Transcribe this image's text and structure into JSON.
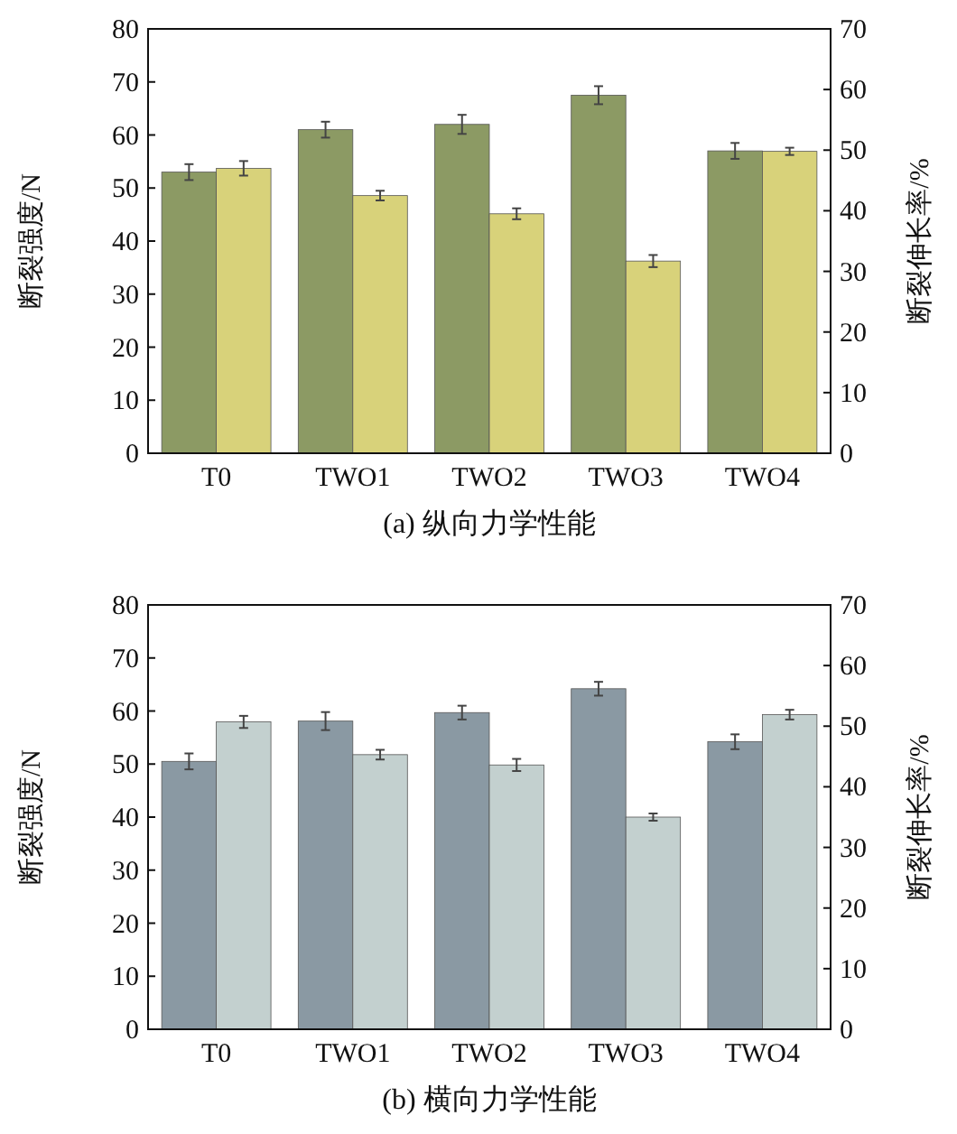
{
  "chart_data": [
    {
      "type": "bar",
      "title": "(a) 纵向力学性能",
      "ylabel": "断裂强度/N",
      "y2label": "断裂伸长率/%",
      "categories": [
        "T0",
        "TWO1",
        "TWO2",
        "TWO3",
        "TWO4"
      ],
      "series": [
        {
          "color": "#8c9a64",
          "values": [
            53,
            61,
            62,
            67.5,
            57
          ],
          "errors": [
            1.5,
            1.5,
            1.8,
            1.7,
            1.5
          ]
        },
        {
          "color": "#d8d27a",
          "axis": "y2",
          "values": [
            47,
            42.5,
            39.5,
            31.7,
            49.8
          ],
          "errors": [
            1.2,
            0.8,
            0.9,
            1,
            0.6
          ]
        }
      ],
      "ylim": [
        0,
        80
      ],
      "yticks": [
        0,
        10,
        20,
        30,
        40,
        50,
        60,
        70,
        80
      ],
      "y2lim": [
        0,
        70
      ],
      "y2ticks": [
        0,
        10,
        20,
        30,
        40,
        50,
        60,
        70
      ]
    },
    {
      "type": "bar",
      "title": "(b) 横向力学性能",
      "ylabel": "断裂强度/N",
      "y2label": "断裂伸长率/%",
      "categories": [
        "T0",
        "TWO1",
        "TWO2",
        "TWO3",
        "TWO4"
      ],
      "series": [
        {
          "color": "#8a99a3",
          "values": [
            50.5,
            58.1,
            59.7,
            64.2,
            54.2
          ],
          "errors": [
            1.5,
            1.7,
            1.3,
            1.3,
            1.4
          ]
        },
        {
          "color": "#c3d0cf",
          "axis": "y2",
          "values": [
            50.7,
            45.3,
            43.6,
            35,
            51.9
          ],
          "errors": [
            1,
            0.8,
            1,
            0.6,
            0.8
          ]
        }
      ],
      "ylim": [
        0,
        80
      ],
      "yticks": [
        0,
        10,
        20,
        30,
        40,
        50,
        60,
        70,
        80
      ],
      "y2lim": [
        0,
        70
      ],
      "y2ticks": [
        0,
        10,
        20,
        30,
        40,
        50,
        60,
        70
      ]
    }
  ]
}
